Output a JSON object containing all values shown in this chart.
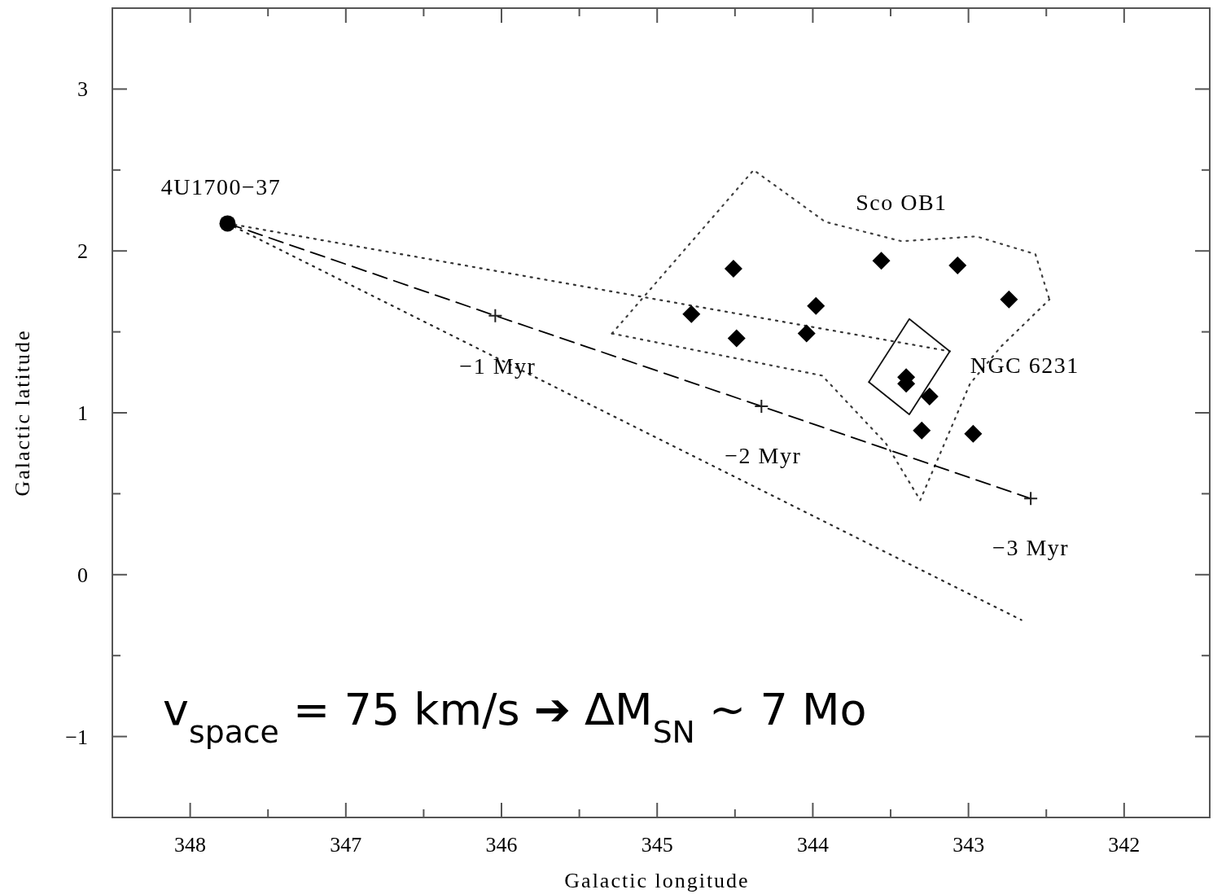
{
  "chart_data": {
    "type": "scatter",
    "xlabel": "Galactic longitude",
    "ylabel": "Galactic latitude",
    "xlim": [
      348.5,
      341.45
    ],
    "ylim": [
      -1.5,
      3.5
    ],
    "xticks": [
      348,
      {
        "value": 347.5,
        "label": null
      },
      347,
      {
        "value": 346.5,
        "label": null
      },
      346,
      {
        "value": 345.5,
        "label": null
      },
      345,
      {
        "value": 344.5,
        "label": null
      },
      344,
      {
        "value": 343.5,
        "label": null
      },
      343,
      {
        "value": 342.5,
        "label": null
      },
      342
    ],
    "yticks": [
      {
        "value": -1,
        "label": "−1"
      },
      {
        "value": -0.5,
        "label": null
      },
      0,
      {
        "value": 0.5,
        "label": null
      },
      1,
      {
        "value": 1.5,
        "label": null
      },
      2,
      {
        "value": 2.5,
        "label": null
      },
      3
    ],
    "grid": false,
    "series": [
      {
        "type": "line",
        "line_style": "dotted",
        "marker": "none",
        "color": "#333333",
        "x": [
          347.76,
          343.12
        ],
        "values": [
          2.17,
          1.38
        ]
      },
      {
        "type": "line",
        "line_style": "dotted",
        "marker": "none",
        "color": "#2a2a2a",
        "x": [
          347.76,
          342.66
        ],
        "values": [
          2.17,
          -0.28
        ]
      },
      {
        "type": "line",
        "line_style": "dotted",
        "marker": "none",
        "color": "#404040",
        "x": [
          345.29,
          344.38,
          343.92,
          343.43,
          342.95,
          342.57,
          342.48
        ],
        "values": [
          1.49,
          2.5,
          2.18,
          2.06,
          2.09,
          1.98,
          1.7
        ]
      },
      {
        "type": "line",
        "line_style": "dotted",
        "marker": "none",
        "color": "#3a3a3a",
        "x": [
          345.29,
          343.94,
          343.53,
          343.31,
          342.99,
          342.79,
          342.48
        ],
        "values": [
          1.49,
          1.23,
          0.81,
          0.46,
          1.18,
          1.41,
          1.7
        ]
      },
      {
        "type": "line",
        "line_style": "solid",
        "marker": "none",
        "color": "#151515",
        "x": [
          343.64,
          343.38,
          343.12
        ],
        "values": [
          1.19,
          1.58,
          1.38
        ]
      },
      {
        "type": "line",
        "line_style": "solid",
        "marker": "none",
        "color": "#101010",
        "x": [
          343.64,
          343.38,
          343.12
        ],
        "values": [
          1.19,
          0.99,
          1.38
        ]
      },
      {
        "type": "line",
        "line_style": "dashed",
        "marker": "none",
        "color": "#000000",
        "x": [
          347.76,
          346.04,
          344.33,
          342.6
        ],
        "values": [
          2.17,
          1.6,
          1.04,
          0.47
        ]
      },
      {
        "marker": "cross",
        "color": "#202020",
        "x": [
          346.04,
          344.33,
          342.6
        ],
        "values": [
          1.6,
          1.04,
          0.47
        ]
      },
      {
        "marker": "diamond",
        "color": "#000000",
        "x": [
          344.78,
          344.51,
          344.49,
          344.04,
          343.98,
          343.56,
          343.07,
          342.74,
          343.4,
          343.4,
          343.25,
          343.3,
          342.97
        ],
        "values": [
          1.61,
          1.89,
          1.46,
          1.49,
          1.66,
          1.94,
          1.91,
          1.7,
          1.22,
          1.18,
          1.1,
          0.89,
          0.87
        ]
      },
      {
        "marker": "circle",
        "color": "#000000",
        "x": [
          347.76
        ],
        "values": [
          2.17
        ]
      }
    ],
    "annotations": [
      {
        "text": "4U1700−37",
        "x": 347.76,
        "y": 2.17
      },
      {
        "text": "Sco OB1",
        "x": 343.43,
        "y": 2.06
      },
      {
        "text": "NGC 6231",
        "x": 343.12,
        "y": 1.38
      },
      {
        "text": "−1 Myr",
        "x": 346.04,
        "y": 1.6
      },
      {
        "text": "−2 Myr",
        "x": 344.33,
        "y": 1.04
      },
      {
        "text": "−3 Myr",
        "x": 342.6,
        "y": 0.47
      },
      "v$_{space}$ = 75 km/s ➔ ΔM$_{SN}$ ~ 7 Mo"
    ]
  }
}
